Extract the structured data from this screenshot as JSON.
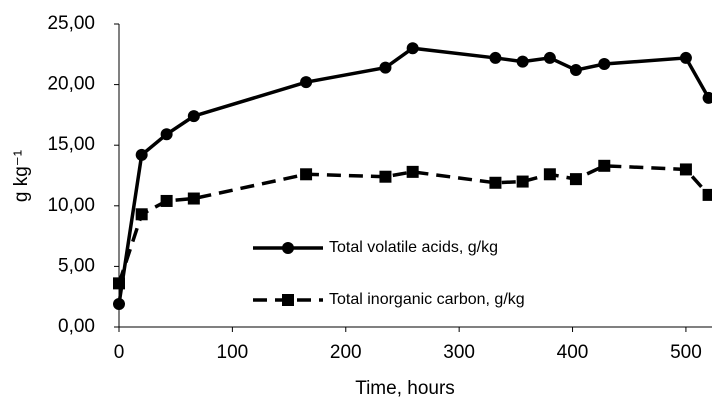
{
  "chart_data": {
    "type": "line",
    "x_label": "Time, hours",
    "y_label": "g kg⁻¹",
    "xlim": [
      0,
      523
    ],
    "xticks": [
      0,
      100,
      200,
      300,
      400,
      500
    ],
    "ylim": [
      0,
      25
    ],
    "yticks": [
      {
        "value": 0,
        "label": "0,00"
      },
      {
        "value": 5,
        "label": "5,00"
      },
      {
        "value": 10,
        "label": "10,00"
      },
      {
        "value": 15,
        "label": "15,00"
      },
      {
        "value": 20,
        "label": "20,00"
      },
      {
        "value": 25,
        "label": "25,00"
      }
    ],
    "grid": false,
    "series": [
      {
        "name": "Total volatile acids, g/kg",
        "color": "#000000",
        "marker": "circle",
        "dash": "solid",
        "x": [
          0,
          20,
          42,
          66,
          165,
          235,
          259,
          332,
          356,
          380,
          403,
          428,
          500,
          520
        ],
        "values": [
          1.9,
          14.2,
          15.9,
          17.4,
          20.2,
          21.4,
          23.0,
          22.2,
          21.9,
          22.2,
          21.2,
          21.7,
          22.2,
          18.9
        ]
      },
      {
        "name": "Total inorganic carbon, g/kg",
        "color": "#000000",
        "marker": "square",
        "dash": "dashed",
        "x": [
          0,
          20,
          42,
          66,
          165,
          235,
          259,
          332,
          356,
          380,
          403,
          428,
          500,
          520
        ],
        "values": [
          3.6,
          9.3,
          10.4,
          10.6,
          12.6,
          12.4,
          12.8,
          11.9,
          12.0,
          12.6,
          12.2,
          13.3,
          13.0,
          10.9
        ]
      }
    ]
  }
}
